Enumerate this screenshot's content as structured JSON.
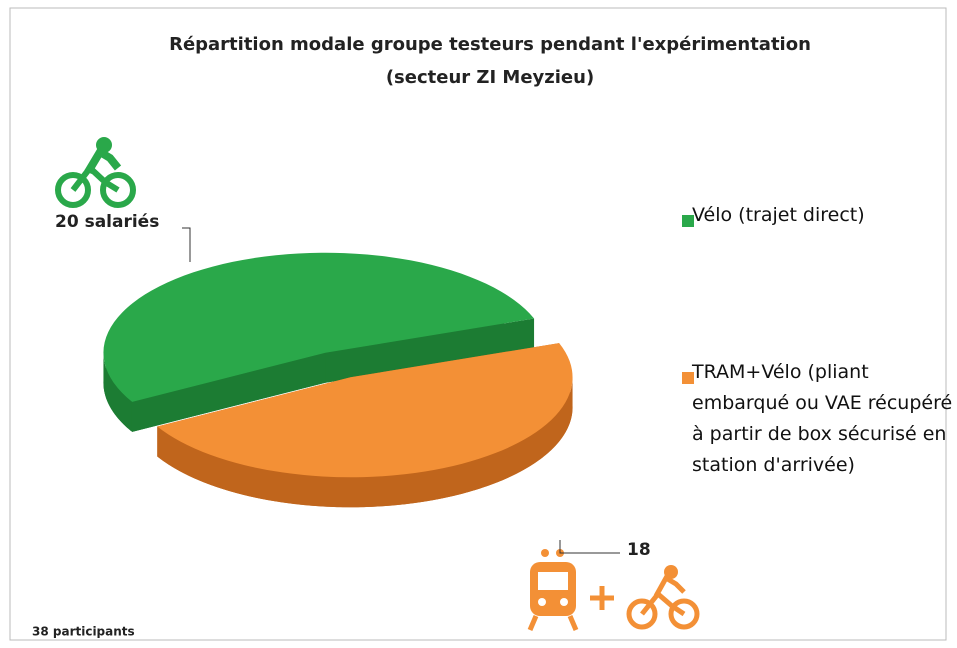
{
  "chart_data": {
    "type": "pie",
    "title": "Répartition modale groupe testeurs pendant l'expérimentation",
    "subtitle": "(secteur ZI Meyzieu)",
    "categories": [
      "Vélo (trajet direct)",
      "TRAM+Vélo (pliant embarqué ou VAE récupéré à partir de box sécurisé en station d'arrivée)"
    ],
    "values": [
      20,
      18
    ],
    "value_labels": [
      "20 salariés",
      "18"
    ],
    "colors": [
      "#2aa84a",
      "#f39036"
    ],
    "side_colors": [
      "#1c7c33",
      "#c0651c"
    ],
    "legend": "right",
    "annotations": [
      "38 participants"
    ]
  }
}
